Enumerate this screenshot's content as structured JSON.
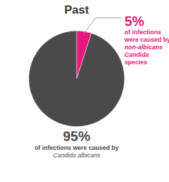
{
  "chart_data": {
    "type": "pie",
    "title": "Past",
    "values": [
      5,
      95
    ],
    "value_labels": [
      "5%",
      "95%"
    ],
    "colors": [
      "#e8177d",
      "#4a4a4a"
    ],
    "data_labels": true,
    "annotations": [
      [
        "of infections",
        "were caused by",
        {
          "text": "non-albicans",
          "style": "bold-italic"
        },
        {
          "text": "Candida",
          "style": "bold-italic"
        },
        "species"
      ],
      [
        "of infections were caused by",
        {
          "text": "Candida albicans",
          "style": "italic"
        }
      ]
    ]
  }
}
